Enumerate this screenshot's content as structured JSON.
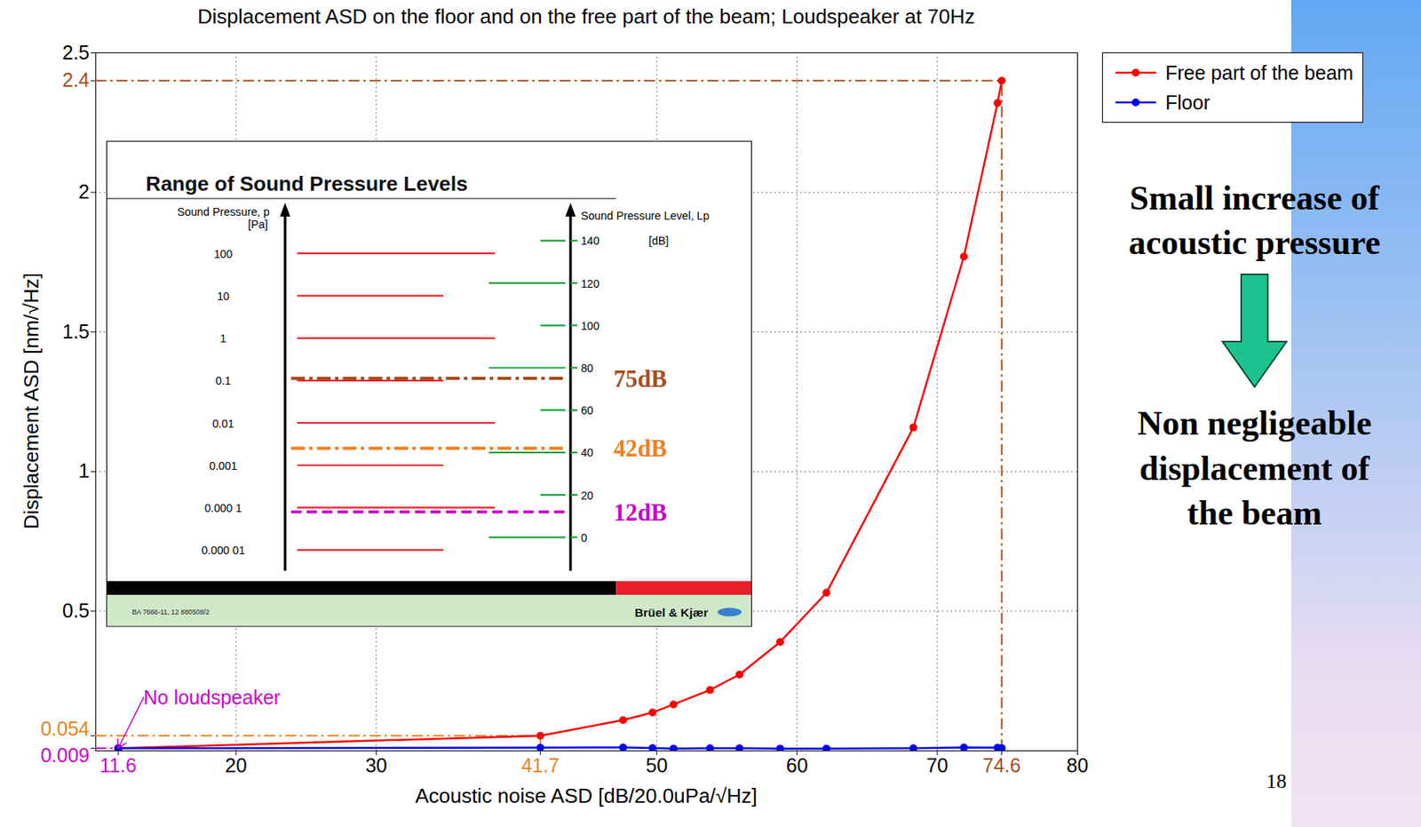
{
  "chart_data": {
    "type": "line",
    "title": "Displacement ASD on the floor and on the free part of the beam; Loudspeaker at 70Hz",
    "x_label": "Acoustic noise ASD [dB/20.0uPa/√Hz]",
    "y_label": "Displacement ASD [nm/√Hz]",
    "xlim": [
      10,
      80
    ],
    "ylim": [
      0,
      2.5
    ],
    "xticks": [
      11.6,
      20,
      30,
      41.7,
      50,
      60,
      70,
      74.6,
      80
    ],
    "yticks": [
      0.009,
      0.054,
      0.5,
      1,
      1.5,
      2,
      2.4,
      2.5
    ],
    "grid": true,
    "legend": "right",
    "marker": "circle",
    "line_style": "solid",
    "x": [
      11.6,
      41.7,
      47.6,
      49.7,
      51.2,
      53.8,
      55.9,
      58.8,
      62.1,
      68.3,
      71.9,
      74.3,
      74.6
    ],
    "series": [
      {
        "name": "Free part of the beam",
        "color": "#ff0000",
        "values": [
          0.009,
          0.054,
          0.11,
          0.137,
          0.166,
          0.218,
          0.273,
          0.39,
          0.566,
          1.158,
          1.77,
          2.32,
          2.4
        ]
      },
      {
        "name": "Floor",
        "color": "#0000ff",
        "values": [
          0.009,
          0.011,
          0.012,
          0.01,
          0.008,
          0.009,
          0.009,
          0.008,
          0.008,
          0.009,
          0.012,
          0.011,
          0.01
        ]
      }
    ],
    "reference_lines": [
      {
        "x": 74.6,
        "y": 2.4,
        "color": "#a84d1e",
        "line_style": "dashdot"
      },
      {
        "x": 41.7,
        "y": 0.054,
        "color": "#e8841e",
        "line_style": "dashdot"
      },
      {
        "x": 11.6,
        "y": 0.009,
        "color": "#cc00cc",
        "line_style": "dashdot"
      }
    ],
    "annotations": [
      {
        "text": "No loudspeaker",
        "x": 13.4,
        "y": 0.19,
        "color": "#cc00cc",
        "arrow_to": [
          11.6,
          0.009
        ]
      }
    ],
    "side_notes": {
      "cause": "Small increase of acoustic pressure",
      "effect": "Non negligeable displacement of the beam"
    },
    "page_number": "18",
    "inset": {
      "title": "Range of Sound Pressure Levels",
      "left_axis_title": "Sound Pressure, p",
      "left_axis_unit": "[Pa]",
      "right_axis_title": "Sound Pressure Level, Lp",
      "right_axis_unit": "[dB]",
      "pressure_ticks": [
        100,
        10,
        1,
        0.1,
        0.01,
        0.001,
        {
          "value": 0.0001,
          "label": "0.000 1"
        },
        {
          "value": 1e-05,
          "label": "0.000 01"
        }
      ],
      "level_ticks": [
        0,
        20,
        40,
        60,
        80,
        100,
        120,
        140
      ],
      "levels": [
        {
          "value": 75,
          "label": "75dB",
          "color": "#a84d1e"
        },
        {
          "value": 42,
          "label": "42dB",
          "color": "#f07f1e"
        },
        {
          "value": 12,
          "label": "12dB",
          "color": "#cc00cc"
        }
      ],
      "footer_code": "BA 7666-11, 12  880508/2",
      "brand": "Brüel & Kjær"
    }
  }
}
